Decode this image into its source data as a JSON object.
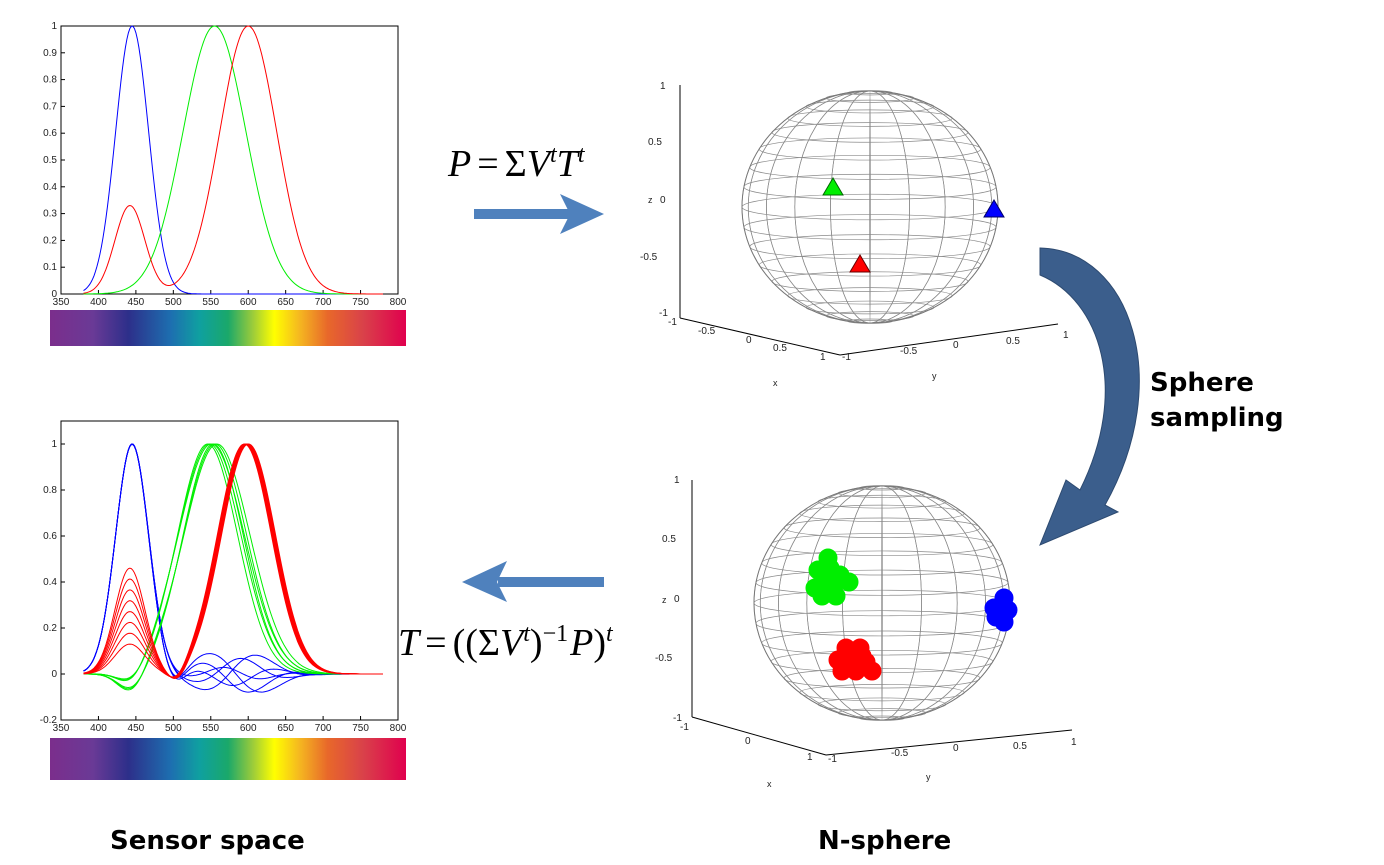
{
  "colors": {
    "red": "#ff0000",
    "green": "#00ee00",
    "blue": "#0000ff",
    "arrow": "#4f81bd",
    "curved_arrow": "#3b5e8c",
    "wire": "#8a8a8a"
  },
  "labels": {
    "sensor_space": "Sensor space",
    "n_sphere": "N-sphere",
    "sphere_sampling_line1": "Sphere",
    "sphere_sampling_line2": "sampling"
  },
  "formulas": {
    "forward": "P = ΣV^t T^t",
    "inverse": "T = ((ΣV^t)^-1 P)^t"
  },
  "icons": {
    "forward_arrow": "right-arrow-icon",
    "inverse_arrow": "left-arrow-icon",
    "sampling_arrow": "curved-arrow-icon"
  },
  "chart_data": [
    {
      "type": "line",
      "panel": "top-left",
      "x_ticks": [
        "350",
        "400",
        "450",
        "500",
        "550",
        "600",
        "650",
        "700",
        "750",
        "800"
      ],
      "y_ticks": [
        "0",
        "0.1",
        "0.2",
        "0.3",
        "0.4",
        "0.5",
        "0.6",
        "0.7",
        "0.8",
        "0.9",
        "1"
      ],
      "xlim": [
        350,
        800
      ],
      "ylim": [
        0,
        1
      ],
      "colorbar": "visible spectrum 380-780 nm",
      "series": [
        {
          "color": "blue",
          "peaks": [
            {
              "center": 445,
              "width": 22,
              "height": 1.0
            }
          ]
        },
        {
          "color": "green",
          "peaks": [
            {
              "center": 555,
              "width": 42,
              "height": 1.0
            }
          ]
        },
        {
          "color": "red",
          "peaks": [
            {
              "center": 600,
              "width": 38,
              "height": 1.0
            },
            {
              "center": 442,
              "width": 20,
              "height": 0.33
            }
          ]
        }
      ]
    },
    {
      "type": "line",
      "panel": "bottom-left",
      "x_ticks": [
        "350",
        "400",
        "450",
        "500",
        "550",
        "600",
        "650",
        "700",
        "750",
        "800"
      ],
      "y_ticks": [
        "-0.2",
        "0",
        "0.2",
        "0.4",
        "0.6",
        "0.8",
        "1"
      ],
      "xlim": [
        350,
        800
      ],
      "ylim": [
        -0.2,
        1.1
      ],
      "colorbar": "visible spectrum 380-780 nm",
      "series": [
        {
          "color": "blue",
          "count": 6,
          "peak": 445,
          "height": 1.0
        },
        {
          "color": "green",
          "count": 6,
          "peak": 555,
          "height": 1.0
        },
        {
          "color": "red",
          "count": 8,
          "peak": 598,
          "height": 1.0,
          "secondary_peak": 442,
          "secondary_range": [
            0.13,
            0.46
          ]
        }
      ]
    },
    {
      "type": "scatter",
      "panel": "top-right",
      "projection": "3d",
      "z_ticks": [
        "-1",
        "-0.5",
        "0",
        "0.5",
        "1"
      ],
      "x_ticks": [
        "-1",
        "-0.5",
        "0",
        "0.5",
        "1"
      ],
      "y_ticks": [
        "-1",
        "-0.5",
        "0",
        "0.5",
        "1"
      ],
      "xlabel": "x",
      "ylabel": "y",
      "zlabel": "z",
      "marker": "triangle",
      "points": [
        {
          "color": "green",
          "label": "green sensor",
          "z": 0.1
        },
        {
          "color": "blue",
          "label": "blue sensor",
          "z": -0.05
        },
        {
          "color": "red",
          "label": "red sensor",
          "z": -0.55
        }
      ]
    },
    {
      "type": "scatter",
      "panel": "bottom-right",
      "projection": "3d",
      "z_ticks": [
        "-1",
        "-0.5",
        "0",
        "0.5",
        "1"
      ],
      "x_ticks": [
        "-1",
        "0",
        "1"
      ],
      "y_ticks": [
        "-1",
        "-0.5",
        "0",
        "0.5",
        "1"
      ],
      "xlabel": "x",
      "ylabel": "y",
      "zlabel": "z",
      "marker": "circle",
      "clusters": [
        {
          "color": "green",
          "count": 10,
          "z": 0.15
        },
        {
          "color": "blue",
          "count": 5,
          "z": -0.1
        },
        {
          "color": "red",
          "count": 9,
          "z": -0.55
        }
      ]
    }
  ]
}
